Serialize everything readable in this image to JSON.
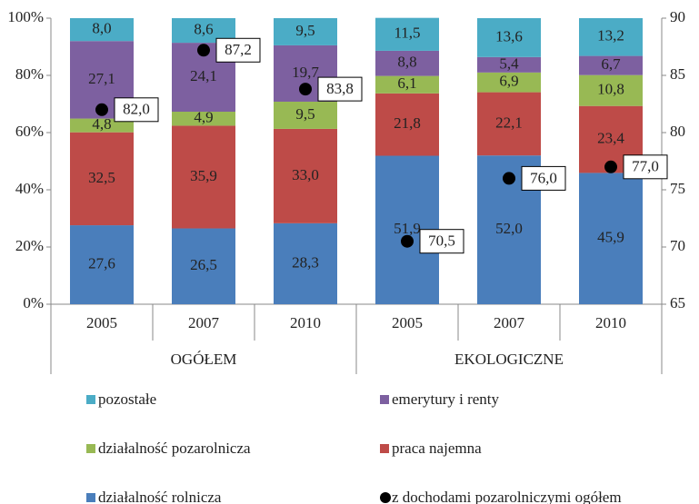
{
  "chart_data": {
    "type": "bar",
    "stacked": true,
    "categories": [
      "2005",
      "2007",
      "2010",
      "2005",
      "2007",
      "2010"
    ],
    "group_labels": [
      "OGÓŁEM",
      "EKOLOGICZNE"
    ],
    "ylim": [
      0,
      100
    ],
    "yticks": [
      {
        "value": 0,
        "label": "0%"
      },
      {
        "value": 20,
        "label": "20%"
      },
      {
        "value": 40,
        "label": "40%"
      },
      {
        "value": 60,
        "label": "60%"
      },
      {
        "value": 80,
        "label": "80%"
      },
      {
        "value": 100,
        "label": "100%"
      }
    ],
    "y2lim": [
      65,
      90
    ],
    "y2ticks": [
      65,
      70,
      75,
      80,
      85,
      90
    ],
    "grid": false,
    "series": [
      {
        "name": "działalność rolnicza",
        "color": "#4a7ebb",
        "values": [
          27.6,
          26.5,
          28.3,
          51.9,
          52.0,
          45.9
        ],
        "value_labels": [
          "27,6",
          "26,5",
          "28,3",
          "51,9",
          "52,0",
          "45,9"
        ]
      },
      {
        "name": "praca najemna",
        "color": "#be4b48",
        "values": [
          32.5,
          35.9,
          33.0,
          21.8,
          22.1,
          23.4
        ],
        "value_labels": [
          "32,5",
          "35,9",
          "33,0",
          "21,8",
          "22,1",
          "23,4"
        ]
      },
      {
        "name": "działalność pozarolnicza",
        "color": "#98b954",
        "values": [
          4.8,
          4.9,
          9.5,
          6.1,
          6.9,
          10.8
        ],
        "value_labels": [
          "4,8",
          "4,9",
          "9,5",
          "6,1",
          "6,9",
          "10,8"
        ]
      },
      {
        "name": "emerytury i renty",
        "color": "#7d60a0",
        "values": [
          27.1,
          24.1,
          19.7,
          8.8,
          5.4,
          6.7
        ],
        "value_labels": [
          "27,1",
          "24,1",
          "19,7",
          "8,8",
          "5,4",
          "6,7"
        ]
      },
      {
        "name": "pozostałe",
        "color": "#4bacc6",
        "values": [
          8.0,
          8.6,
          9.5,
          11.5,
          13.6,
          13.2
        ],
        "value_labels": [
          "8,0",
          "8,6",
          "9,5",
          "11,5",
          "13,6",
          "13,2"
        ]
      },
      {
        "name": "z dochodami pozarolniczymi ogółem",
        "color": "#000000",
        "axis": "y2",
        "values": [
          82.0,
          87.2,
          83.8,
          70.5,
          76.0,
          77.0
        ],
        "value_labels": [
          "82,0",
          "87,2",
          "83,8",
          "70,5",
          "76,0",
          "77,0"
        ]
      }
    ]
  }
}
